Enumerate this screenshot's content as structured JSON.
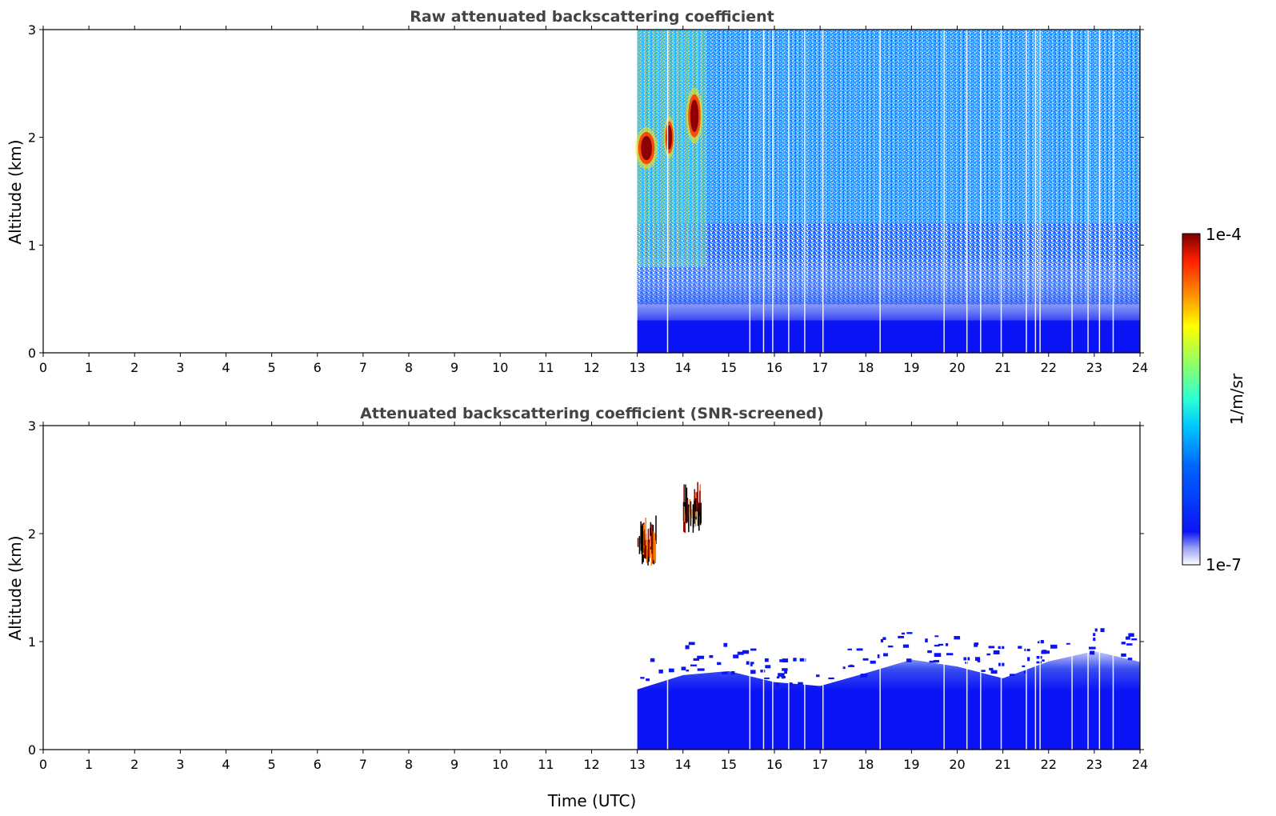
{
  "chart_data": [
    {
      "type": "heatmap",
      "title": "Raw attenuated backscattering coefficient",
      "xlabel": "",
      "ylabel": "Altitude (km)",
      "xlim": [
        0,
        24
      ],
      "ylim": [
        0,
        3
      ],
      "x_ticks": [
        "0",
        "1",
        "2",
        "3",
        "4",
        "5",
        "6",
        "7",
        "8",
        "9",
        "10",
        "11",
        "12",
        "13",
        "14",
        "15",
        "16",
        "17",
        "18",
        "19",
        "20",
        "21",
        "22",
        "23",
        "24"
      ],
      "y_ticks": [
        "0",
        "1",
        "2",
        "3"
      ],
      "data_start_time": 13,
      "data_end_time": 24,
      "features": [
        {
          "feature": "boundary layer",
          "time": [
            13,
            24
          ],
          "altitude_km": [
            0,
            0.4
          ]
        },
        {
          "feature": "cloud",
          "time": [
            13.0,
            13.4
          ],
          "altitude_km": [
            1.75,
            2.05
          ]
        },
        {
          "feature": "cloud",
          "time": [
            13.6,
            13.8
          ],
          "altitude_km": [
            1.85,
            2.15
          ]
        },
        {
          "feature": "cloud",
          "time": [
            14.1,
            14.4
          ],
          "altitude_km": [
            2.0,
            2.4
          ]
        }
      ]
    },
    {
      "type": "heatmap",
      "title": "Attenuated backscattering coefficient (SNR-screened)",
      "xlabel": "Time (UTC)",
      "ylabel": "Altitude (km)",
      "xlim": [
        0,
        24
      ],
      "ylim": [
        0,
        3
      ],
      "x_ticks": [
        "0",
        "1",
        "2",
        "3",
        "4",
        "5",
        "6",
        "7",
        "8",
        "9",
        "10",
        "11",
        "12",
        "13",
        "14",
        "15",
        "16",
        "17",
        "18",
        "19",
        "20",
        "21",
        "22",
        "23",
        "24"
      ],
      "y_ticks": [
        "0",
        "1",
        "2",
        "3"
      ],
      "data_start_time": 13,
      "data_end_time": 24,
      "boundary_layer_top_km": {
        "time": [
          13,
          14,
          15,
          16,
          17,
          18,
          19,
          20,
          21,
          22,
          23,
          24
        ],
        "altitude": [
          0.55,
          0.7,
          0.72,
          0.6,
          0.58,
          0.7,
          0.85,
          0.75,
          0.65,
          0.8,
          0.9,
          0.82
        ]
      },
      "features": [
        {
          "feature": "cloud",
          "time": [
            13.0,
            13.4
          ],
          "altitude_km": [
            1.7,
            2.05
          ]
        },
        {
          "feature": "cloud",
          "time": [
            14.0,
            14.4
          ],
          "altitude_km": [
            2.0,
            2.4
          ]
        }
      ]
    }
  ],
  "colorbar": {
    "label": "1/m/sr",
    "max_label": "1e-4",
    "min_label": "1e-7",
    "scale": "log",
    "colormap": "jet"
  },
  "colors": {
    "blue": "#0a14f5",
    "cloud": "#8b0000"
  }
}
